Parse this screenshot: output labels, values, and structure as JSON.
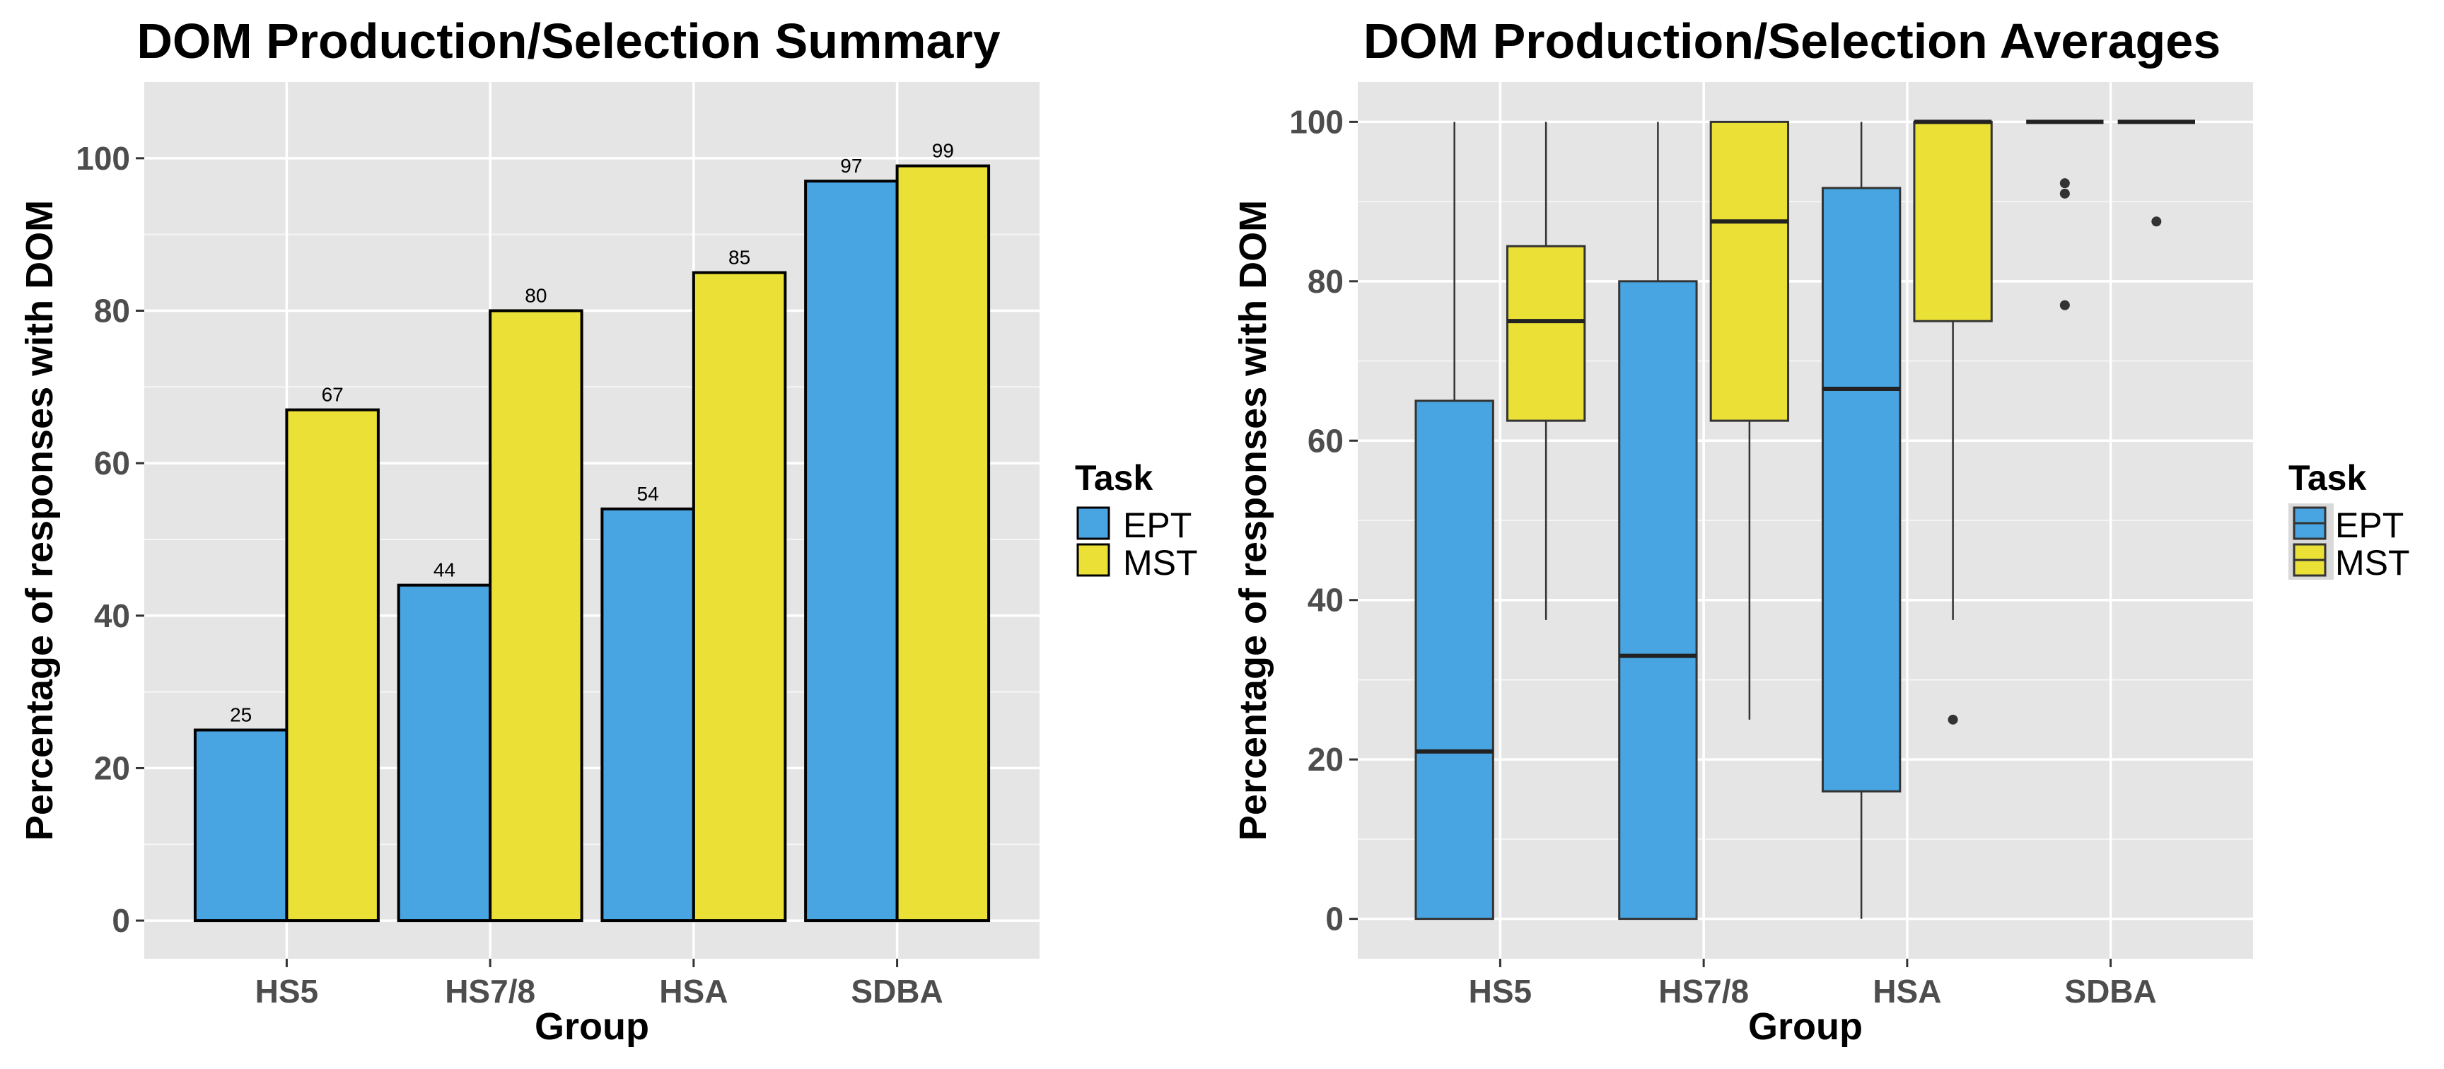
{
  "colors": {
    "EPT": "#48a5e2",
    "MST": "#ebe035",
    "panel": "#e5e5e5",
    "grid": "#ffffff",
    "outline": "#000000"
  },
  "chart_data": [
    {
      "type": "bar",
      "title": "DOM Production/Selection Summary",
      "xlabel": "Group",
      "ylabel": "Percentage of responses with DOM",
      "ylim": [
        -5,
        110
      ],
      "yticks": [
        "0",
        "20",
        "40",
        "60",
        "80",
        "100"
      ],
      "categories": [
        "HS5",
        "HS7/8",
        "HSA",
        "SDBA"
      ],
      "series": [
        {
          "name": "EPT",
          "values": [
            25,
            44,
            54,
            97
          ]
        },
        {
          "name": "MST",
          "values": [
            67,
            80,
            85,
            99
          ]
        }
      ],
      "data_labels": {
        "EPT": [
          "25",
          "44",
          "54",
          "97"
        ],
        "MST": [
          "67",
          "80",
          "85",
          "99"
        ]
      },
      "legend": {
        "title": "Task",
        "entries": [
          "EPT",
          "MST"
        ],
        "position": "right"
      },
      "grid": true
    },
    {
      "type": "box",
      "title": "DOM Production/Selection Averages",
      "xlabel": "Group",
      "ylabel": "Percentage of responses with DOM",
      "ylim": [
        -5,
        105
      ],
      "yticks": [
        "0",
        "20",
        "40",
        "60",
        "80",
        "100"
      ],
      "categories": [
        "HS5",
        "HS7/8",
        "HSA",
        "SDBA"
      ],
      "series": [
        {
          "name": "EPT",
          "boxes": [
            {
              "min": 0,
              "q1": 0,
              "median": 21,
              "q3": 65,
              "max": 100,
              "outliers": []
            },
            {
              "min": 0,
              "q1": 0,
              "median": 33,
              "q3": 80,
              "max": 100,
              "outliers": []
            },
            {
              "min": 0,
              "q1": 16,
              "median": 66.5,
              "q3": 91.7,
              "max": 100,
              "outliers": []
            },
            {
              "min": 100,
              "q1": 100,
              "median": 100,
              "q3": 100,
              "max": 100,
              "outliers": [
                92.3,
                91,
                77
              ]
            }
          ]
        },
        {
          "name": "MST",
          "boxes": [
            {
              "min": 37.5,
              "q1": 62.5,
              "median": 75,
              "q3": 84.4,
              "max": 100,
              "outliers": []
            },
            {
              "min": 25,
              "q1": 62.5,
              "median": 87.5,
              "q3": 100,
              "max": 100,
              "outliers": []
            },
            {
              "min": 37.5,
              "q1": 75,
              "median": 100,
              "q3": 100,
              "max": 100,
              "outliers": [
                25
              ]
            },
            {
              "min": 100,
              "q1": 100,
              "median": 100,
              "q3": 100,
              "max": 100,
              "outliers": [
                87.5
              ]
            }
          ]
        }
      ],
      "legend": {
        "title": "Task",
        "entries": [
          "EPT",
          "MST"
        ],
        "position": "right"
      },
      "grid": true
    }
  ]
}
